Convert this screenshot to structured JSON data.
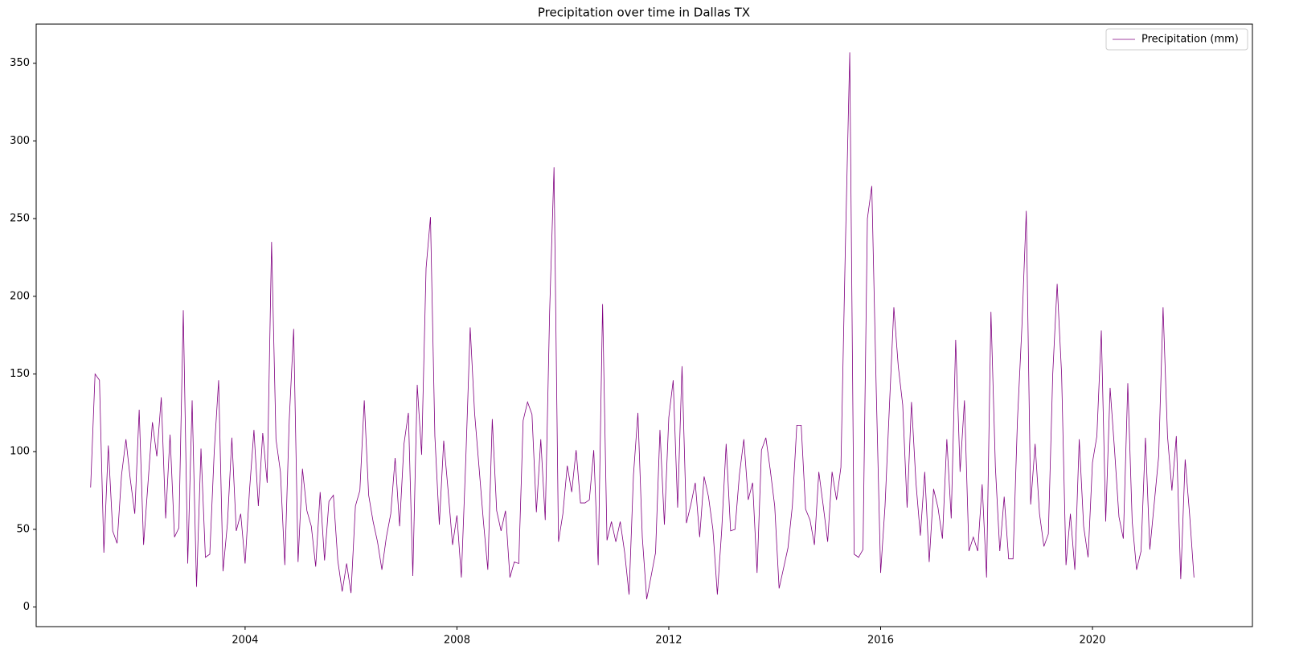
{
  "chart_data": {
    "type": "line",
    "title": "Precipitation over time in Dallas TX",
    "x": [
      2001.083,
      2001.167,
      2001.25,
      2001.333,
      2001.417,
      2001.5,
      2001.583,
      2001.667,
      2001.75,
      2001.833,
      2001.917,
      2002.0,
      2002.083,
      2002.167,
      2002.25,
      2002.333,
      2002.417,
      2002.5,
      2002.583,
      2002.667,
      2002.75,
      2002.833,
      2002.917,
      2003.0,
      2003.083,
      2003.167,
      2003.25,
      2003.333,
      2003.417,
      2003.5,
      2003.583,
      2003.667,
      2003.75,
      2003.833,
      2003.917,
      2004.0,
      2004.083,
      2004.167,
      2004.25,
      2004.333,
      2004.417,
      2004.5,
      2004.583,
      2004.667,
      2004.75,
      2004.833,
      2004.917,
      2005.0,
      2005.083,
      2005.167,
      2005.25,
      2005.333,
      2005.417,
      2005.5,
      2005.583,
      2005.667,
      2005.75,
      2005.833,
      2005.917,
      2006.0,
      2006.083,
      2006.167,
      2006.25,
      2006.333,
      2006.417,
      2006.5,
      2006.583,
      2006.667,
      2006.75,
      2006.833,
      2006.917,
      2007.0,
      2007.083,
      2007.167,
      2007.25,
      2007.333,
      2007.417,
      2007.5,
      2007.583,
      2007.667,
      2007.75,
      2007.833,
      2007.917,
      2008.0,
      2008.083,
      2008.167,
      2008.25,
      2008.333,
      2008.417,
      2008.5,
      2008.583,
      2008.667,
      2008.75,
      2008.833,
      2008.917,
      2009.0,
      2009.083,
      2009.167,
      2009.25,
      2009.333,
      2009.417,
      2009.5,
      2009.583,
      2009.667,
      2009.75,
      2009.833,
      2009.917,
      2010.0,
      2010.083,
      2010.167,
      2010.25,
      2010.333,
      2010.417,
      2010.5,
      2010.583,
      2010.667,
      2010.75,
      2010.833,
      2010.917,
      2011.0,
      2011.083,
      2011.167,
      2011.25,
      2011.333,
      2011.417,
      2011.5,
      2011.583,
      2011.667,
      2011.75,
      2011.833,
      2011.917,
      2012.0,
      2012.083,
      2012.167,
      2012.25,
      2012.333,
      2012.417,
      2012.5,
      2012.583,
      2012.667,
      2012.75,
      2012.833,
      2012.917,
      2013.0,
      2013.083,
      2013.167,
      2013.25,
      2013.333,
      2013.417,
      2013.5,
      2013.583,
      2013.667,
      2013.75,
      2013.833,
      2013.917,
      2014.0,
      2014.083,
      2014.167,
      2014.25,
      2014.333,
      2014.417,
      2014.5,
      2014.583,
      2014.667,
      2014.75,
      2014.833,
      2014.917,
      2015.0,
      2015.083,
      2015.167,
      2015.25,
      2015.333,
      2015.417,
      2015.5,
      2015.583,
      2015.667,
      2015.75,
      2015.833,
      2015.917,
      2016.0,
      2016.083,
      2016.167,
      2016.25,
      2016.333,
      2016.417,
      2016.5,
      2016.583,
      2016.667,
      2016.75,
      2016.833,
      2016.917,
      2017.0,
      2017.083,
      2017.167,
      2017.25,
      2017.333,
      2017.417,
      2017.5,
      2017.583,
      2017.667,
      2017.75,
      2017.833,
      2017.917,
      2018.0,
      2018.083,
      2018.167,
      2018.25,
      2018.333,
      2018.417,
      2018.5,
      2018.583,
      2018.667,
      2018.75,
      2018.833,
      2018.917,
      2019.0,
      2019.083,
      2019.167,
      2019.25,
      2019.333,
      2019.417,
      2019.5,
      2019.583,
      2019.667,
      2019.75,
      2019.833,
      2019.917,
      2020.0,
      2020.083,
      2020.167,
      2020.25,
      2020.333,
      2020.417,
      2020.5,
      2020.583,
      2020.667,
      2020.75,
      2020.833,
      2020.917,
      2021.0,
      2021.083,
      2021.167,
      2021.25,
      2021.333,
      2021.417,
      2021.5,
      2021.583,
      2021.667,
      2021.75,
      2021.833,
      2021.917
    ],
    "series": [
      {
        "name": "Precipitation (mm)",
        "color": "purple",
        "values": [
          77,
          150,
          146,
          35,
          104,
          49,
          41,
          85,
          108,
          82,
          60,
          127,
          40,
          80,
          119,
          97,
          135,
          57,
          111,
          45,
          51,
          191,
          28,
          133,
          13,
          102,
          32,
          34,
          100,
          146,
          23,
          54,
          109,
          49,
          60,
          28,
          75,
          114,
          65,
          112,
          80,
          235,
          108,
          87,
          27,
          120,
          179,
          29,
          89,
          62,
          52,
          26,
          74,
          30,
          68,
          72,
          30,
          10,
          28,
          9,
          65,
          75,
          133,
          72,
          55,
          42,
          24,
          45,
          60,
          96,
          52,
          105,
          125,
          20,
          143,
          98,
          218,
          251,
          110,
          53,
          107,
          75,
          40,
          59,
          19,
          95,
          180,
          125,
          90,
          55,
          24,
          121,
          62,
          49,
          62,
          19,
          29,
          28,
          120,
          132,
          124,
          61,
          108,
          56,
          190,
          283,
          42,
          60,
          91,
          74,
          101,
          67,
          67,
          69,
          101,
          27,
          195,
          43,
          55,
          42,
          55,
          35,
          8,
          85,
          125,
          45,
          5,
          20,
          35,
          114,
          53,
          122,
          146,
          64,
          155,
          54,
          66,
          80,
          45,
          84,
          71,
          50,
          8,
          50,
          105,
          49,
          50,
          85,
          108,
          69,
          80,
          22,
          101,
          109,
          88,
          65,
          12,
          25,
          38,
          65,
          117,
          117,
          63,
          56,
          40,
          87,
          65,
          42,
          87,
          69,
          90,
          230,
          357,
          34,
          32,
          37,
          250,
          271,
          140,
          22,
          65,
          130,
          193,
          155,
          130,
          64,
          132,
          80,
          46,
          87,
          29,
          76,
          64,
          44,
          108,
          57,
          172,
          87,
          133,
          36,
          45,
          36,
          79,
          19,
          190,
          90,
          36,
          71,
          31,
          31,
          120,
          180,
          255,
          66,
          105,
          60,
          39,
          47,
          150,
          208,
          150,
          27,
          60,
          24,
          108,
          52,
          32,
          93,
          110,
          178,
          55,
          141,
          101,
          58,
          44,
          144,
          55,
          24,
          36,
          109,
          37,
          67,
          97,
          193,
          110,
          75,
          110,
          18,
          95,
          60,
          19
        ]
      }
    ],
    "xlim": [
      2000.055,
      2023.02
    ],
    "ylim": [
      -12.6,
      375.2
    ],
    "xticks": [
      2004,
      2008,
      2012,
      2016,
      2020
    ],
    "yticks": [
      0,
      50,
      100,
      150,
      200,
      250,
      300,
      350
    ],
    "legend": "upper right"
  }
}
